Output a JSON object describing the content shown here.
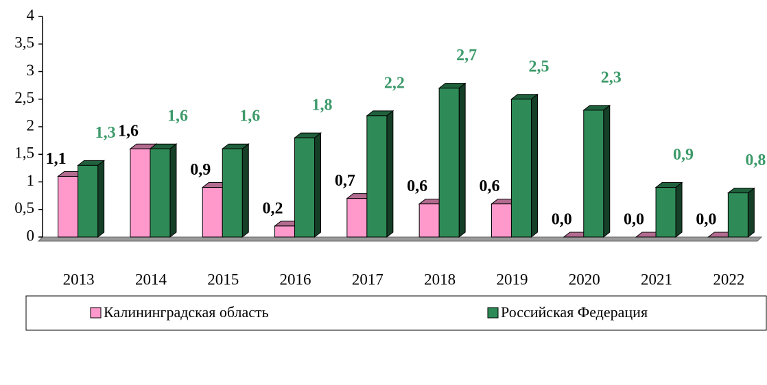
{
  "chart_data": {
    "type": "bar",
    "categories": [
      "2013",
      "2014",
      "2015",
      "2016",
      "2017",
      "2018",
      "2019",
      "2020",
      "2021",
      "2022"
    ],
    "series": [
      {
        "name": "Калининградская область",
        "color": "#ff99cc",
        "label_color": "#000000",
        "values": [
          1.1,
          1.6,
          0.9,
          0.2,
          0.7,
          0.6,
          0.6,
          0.0,
          0.0,
          0.0
        ],
        "value_labels": [
          "1,1",
          "1,6",
          "0,9",
          "0,2",
          "0,7",
          "0,6",
          "0,6",
          "0,0",
          "0,0",
          "0,0"
        ]
      },
      {
        "name": "Российская Федерация",
        "color": "#2e8b57",
        "label_color": "#3d9a6a",
        "values": [
          1.3,
          1.6,
          1.6,
          1.8,
          2.2,
          2.7,
          2.5,
          2.3,
          0.9,
          0.8
        ],
        "value_labels": [
          "1,3",
          "1,6",
          "1,6",
          "1,8",
          "2,2",
          "2,7",
          "2,5",
          "2,3",
          "0,9",
          "0,8"
        ]
      }
    ],
    "ylim": [
      0,
      4
    ],
    "yticks": [
      0,
      {
        "value": 0.5,
        "label": "0,5"
      },
      1,
      {
        "value": 1.5,
        "label": "1,5"
      },
      2,
      {
        "value": 2.5,
        "label": "2,5"
      },
      3,
      {
        "value": 3.5,
        "label": "3,5"
      },
      4
    ],
    "grid": false,
    "legend": "bottom"
  }
}
